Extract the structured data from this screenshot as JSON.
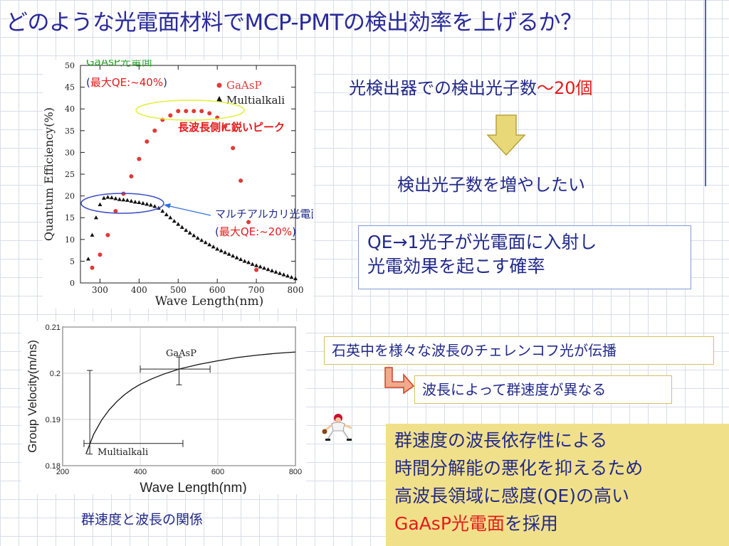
{
  "slide": {
    "title": "どのような光電面材料でMCP-PMTの検出効率を上げるか？",
    "photons_text": "光検出器での検出光子数",
    "photons_value": "〜20個",
    "increase_text": "検出光子数を増やしたい",
    "qe_line1": "QE→1光子が光電面に入射し",
    "qe_line2": "光電効果を起こす確率",
    "box1_text": "石英中を様々な波長のチェレンコフ光が伝播",
    "box2_text": "波長によって群速度が異なる",
    "conclusion_line1": "群速度の波長依存性による",
    "conclusion_line2": "時間分解能の悪化を抑えるため",
    "conclusion_line3": "高波長領域に感度(QE)の高い",
    "conclusion_red": "GaAsP光電面",
    "conclusion_tail": "を採用",
    "caption": "群速度と波長の関係"
  },
  "colors": {
    "title": "#2a2a9a",
    "accent_red": "#e31b1b",
    "arrow_yellow": "#e8d878",
    "conclusion_bg": "#f1e08a"
  },
  "icons": [
    "down-arrow-icon",
    "bent-arrow-icon",
    "baseball-player-icon"
  ],
  "chart_data": [
    {
      "type": "scatter",
      "xlabel": "Wave Length(nm)",
      "ylabel": "Quantum Efficiency(%)",
      "xlim": [
        250,
        800
      ],
      "ylim": [
        0,
        50
      ],
      "xticks": [
        "300",
        "400",
        "500",
        "600",
        "700",
        "800"
      ],
      "yticks": [
        "0",
        "5",
        "10",
        "15",
        "20",
        "25",
        "30",
        "35",
        "40",
        "45",
        "50"
      ],
      "legend_position": "top-right",
      "series": [
        {
          "name": "GaAsP",
          "color": "#e03a3a",
          "marker": "circle",
          "x": [
            280,
            300,
            320,
            340,
            360,
            380,
            400,
            420,
            440,
            460,
            480,
            500,
            520,
            540,
            560,
            580,
            600,
            620,
            640,
            660,
            680,
            700
          ],
          "y": [
            3.5,
            6.5,
            11,
            16.5,
            20.5,
            24.5,
            28.5,
            32.5,
            35,
            37.5,
            38.5,
            39.5,
            39.5,
            39.5,
            39.5,
            39,
            38,
            36,
            31,
            23.5,
            14,
            3
          ]
        },
        {
          "name": "Multialkali",
          "color": "#111111",
          "marker": "triangle",
          "x": [
            270,
            280,
            290,
            300,
            310,
            320,
            330,
            340,
            350,
            360,
            370,
            380,
            390,
            400,
            410,
            420,
            430,
            440,
            450,
            460,
            470,
            480,
            490,
            500,
            510,
            520,
            530,
            540,
            550,
            560,
            570,
            580,
            590,
            600,
            610,
            620,
            630,
            640,
            650,
            660,
            670,
            680,
            690,
            700,
            710,
            720,
            730,
            740,
            750,
            760,
            770,
            780,
            790,
            800
          ],
          "y": [
            5.5,
            11,
            15,
            18,
            19.5,
            19.7,
            19.6,
            19.4,
            19.2,
            19.1,
            19,
            18.8,
            18.6,
            18.5,
            18.3,
            18.1,
            17.9,
            17.6,
            17.2,
            16.5,
            15.7,
            15,
            14.2,
            13.5,
            12.8,
            12.1,
            11.5,
            10.9,
            10.3,
            9.8,
            9.3,
            8.8,
            8.3,
            7.8,
            7.4,
            7,
            6.6,
            6.2,
            5.8,
            5.4,
            5,
            4.7,
            4.3,
            4,
            3.7,
            3.4,
            3.1,
            2.8,
            2.5,
            2.2,
            1.9,
            1.6,
            1.3,
            1
          ]
        }
      ],
      "annotations": {
        "gaasp_label": "GaAsP光電面",
        "gaasp_qe_open": "(",
        "gaasp_qe": "最大QE:~40%",
        "gaasp_qe_close": ")",
        "peak_note": "長波長側に鋭いピーク",
        "multi_label": "マルチアルカリ光電面",
        "multi_qe_open": "(",
        "multi_qe": "最大QE:~20%",
        "multi_qe_close": ")"
      }
    },
    {
      "type": "line",
      "xlabel": "Wave Length(nm)",
      "ylabel": "Group Velocity(m/ns)",
      "xlim": [
        200,
        800
      ],
      "ylim": [
        0.18,
        0.21
      ],
      "xticks": [
        "200",
        "400",
        "600",
        "800"
      ],
      "yticks": [
        "0.18",
        "0.19",
        "0.2",
        "0.21"
      ],
      "series": [
        {
          "color": "#111111",
          "x": [
            260,
            280,
            300,
            320,
            340,
            360,
            380,
            400,
            430,
            460,
            500,
            550,
            600,
            650,
            700,
            750,
            800
          ],
          "y": [
            0.1825,
            0.1868,
            0.1898,
            0.1921,
            0.1939,
            0.1954,
            0.1966,
            0.1976,
            0.1988,
            0.1998,
            0.2009,
            0.2019,
            0.2027,
            0.2034,
            0.2039,
            0.2043,
            0.2046
          ]
        }
      ],
      "points": [
        {
          "name": "GaAsP",
          "x": 500,
          "y": 0.2009,
          "x_err": [
            400,
            580
          ],
          "y_err": [
            0.1975,
            0.2035
          ],
          "label": "GaAsP"
        },
        {
          "name": "Multialkali",
          "x": 270,
          "y": 0.1848,
          "x_err": [
            255,
            510
          ],
          "y_err": [
            0.1825,
            0.2006
          ],
          "label": "Multialkali"
        }
      ]
    }
  ]
}
